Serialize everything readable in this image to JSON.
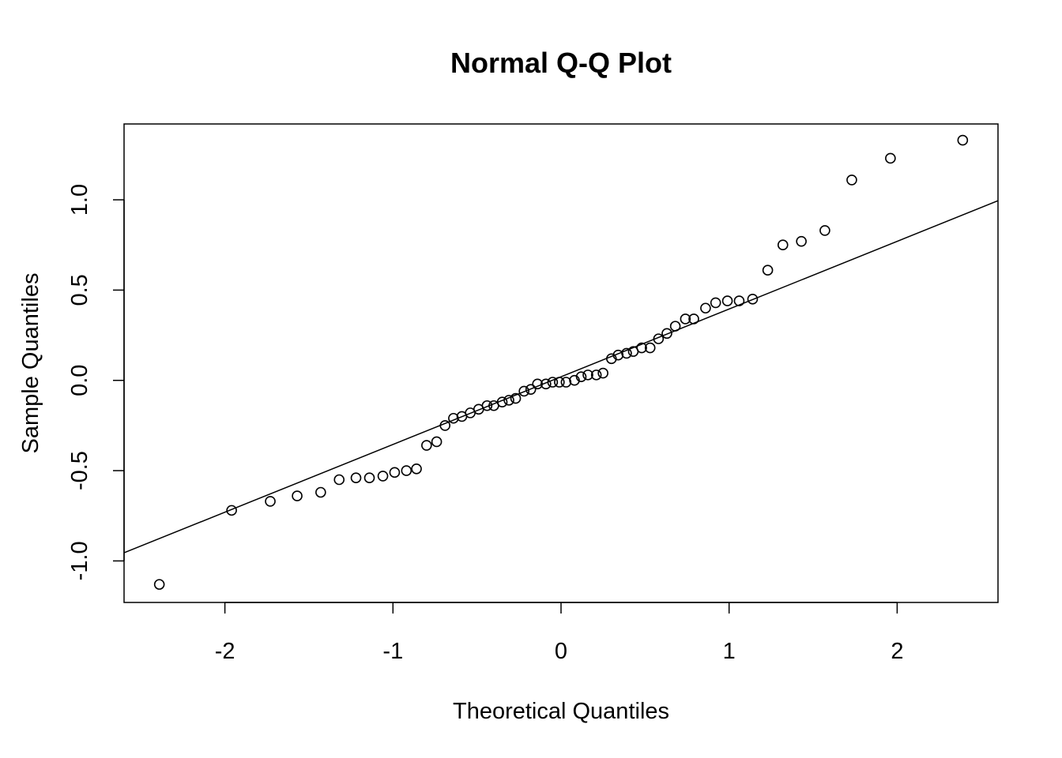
{
  "chart_data": {
    "type": "scatter",
    "title": "Normal Q-Q Plot",
    "xlabel": "Theoretical Quantiles",
    "ylabel": "Sample Quantiles",
    "xlim": [
      -2.6,
      2.6
    ],
    "ylim": [
      -1.23,
      1.42
    ],
    "x_ticks": [
      -2,
      -1,
      0,
      1,
      2
    ],
    "x_tick_labels": [
      "-2",
      "-1",
      "0",
      "1",
      "2"
    ],
    "y_ticks": [
      -1.0,
      -0.5,
      0.0,
      0.5,
      1.0
    ],
    "y_tick_labels": [
      "-1.0",
      "-0.5",
      "0.0",
      "0.5",
      "1.0"
    ],
    "grid": false,
    "reference_line": {
      "intercept": 0.02,
      "slope": 0.375
    },
    "points": [
      {
        "x": -2.39,
        "y": -1.13
      },
      {
        "x": -1.96,
        "y": -0.72
      },
      {
        "x": -1.73,
        "y": -0.67
      },
      {
        "x": -1.57,
        "y": -0.64
      },
      {
        "x": -1.43,
        "y": -0.62
      },
      {
        "x": -1.32,
        "y": -0.55
      },
      {
        "x": -1.22,
        "y": -0.54
      },
      {
        "x": -1.14,
        "y": -0.54
      },
      {
        "x": -1.06,
        "y": -0.53
      },
      {
        "x": -0.99,
        "y": -0.51
      },
      {
        "x": -0.92,
        "y": -0.5
      },
      {
        "x": -0.86,
        "y": -0.49
      },
      {
        "x": -0.8,
        "y": -0.36
      },
      {
        "x": -0.74,
        "y": -0.34
      },
      {
        "x": -0.69,
        "y": -0.25
      },
      {
        "x": -0.64,
        "y": -0.21
      },
      {
        "x": -0.59,
        "y": -0.2
      },
      {
        "x": -0.54,
        "y": -0.18
      },
      {
        "x": -0.49,
        "y": -0.16
      },
      {
        "x": -0.44,
        "y": -0.14
      },
      {
        "x": -0.4,
        "y": -0.14
      },
      {
        "x": -0.35,
        "y": -0.12
      },
      {
        "x": -0.31,
        "y": -0.11
      },
      {
        "x": -0.27,
        "y": -0.1
      },
      {
        "x": -0.22,
        "y": -0.06
      },
      {
        "x": -0.18,
        "y": -0.05
      },
      {
        "x": -0.14,
        "y": -0.02
      },
      {
        "x": -0.09,
        "y": -0.02
      },
      {
        "x": -0.05,
        "y": -0.01
      },
      {
        "x": -0.01,
        "y": -0.01
      },
      {
        "x": 0.03,
        "y": -0.01
      },
      {
        "x": 0.08,
        "y": 0.0
      },
      {
        "x": 0.12,
        "y": 0.02
      },
      {
        "x": 0.16,
        "y": 0.03
      },
      {
        "x": 0.21,
        "y": 0.03
      },
      {
        "x": 0.25,
        "y": 0.04
      },
      {
        "x": 0.3,
        "y": 0.12
      },
      {
        "x": 0.34,
        "y": 0.14
      },
      {
        "x": 0.39,
        "y": 0.15
      },
      {
        "x": 0.43,
        "y": 0.16
      },
      {
        "x": 0.48,
        "y": 0.18
      },
      {
        "x": 0.53,
        "y": 0.18
      },
      {
        "x": 0.58,
        "y": 0.23
      },
      {
        "x": 0.63,
        "y": 0.26
      },
      {
        "x": 0.68,
        "y": 0.3
      },
      {
        "x": 0.74,
        "y": 0.34
      },
      {
        "x": 0.79,
        "y": 0.34
      },
      {
        "x": 0.86,
        "y": 0.4
      },
      {
        "x": 0.92,
        "y": 0.43
      },
      {
        "x": 0.99,
        "y": 0.44
      },
      {
        "x": 1.06,
        "y": 0.44
      },
      {
        "x": 1.14,
        "y": 0.45
      },
      {
        "x": 1.23,
        "y": 0.61
      },
      {
        "x": 1.32,
        "y": 0.75
      },
      {
        "x": 1.43,
        "y": 0.77
      },
      {
        "x": 1.57,
        "y": 0.83
      },
      {
        "x": 1.73,
        "y": 1.11
      },
      {
        "x": 1.96,
        "y": 1.23
      },
      {
        "x": 2.39,
        "y": 1.33
      }
    ]
  }
}
